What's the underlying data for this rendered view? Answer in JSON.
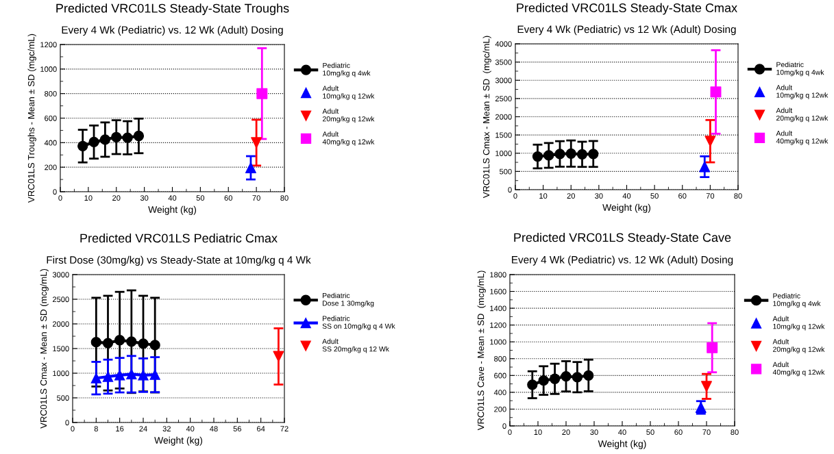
{
  "chart_data": [
    {
      "type": "line",
      "title": "Predicted VRC01LS Steady-State Troughs",
      "subtitle": "Every 4 Wk (Pediatric) vs. 12 Wk (Adult) Dosing",
      "xlabel": "Weight (kg)",
      "ylabel": "VRC01LS Troughs - Mean ± SD (mgc/mL)",
      "xlim": [
        0,
        80
      ],
      "xticks": [
        0,
        10,
        20,
        30,
        40,
        50,
        60,
        70,
        80
      ],
      "ylim": [
        0,
        1200
      ],
      "yticks": [
        0,
        200,
        400,
        600,
        800,
        1000,
        1200
      ],
      "grid": "y",
      "legend": "right",
      "marker": "circle",
      "series": [
        {
          "name": "Pediatric\n10mg/kg q 4wk",
          "color": "#000000",
          "x": [
            8,
            12,
            16,
            20,
            24,
            28
          ],
          "values": [
            372,
            405,
            425,
            445,
            440,
            455
          ],
          "errors": [
            133,
            135,
            140,
            138,
            135,
            141
          ]
        },
        {
          "name": "Adult\n10mg/kg q 12wk",
          "type": "scatter",
          "marker": "triangle",
          "color": "#0000ff",
          "x": [
            68
          ],
          "values": [
            195
          ],
          "errors": [
            95
          ]
        },
        {
          "name": "Adult\n20mg/kg q 12wk",
          "type": "scatter",
          "marker": "triangle_down",
          "color": "#ff0000",
          "x": [
            70
          ],
          "values": [
            400
          ],
          "errors": [
            187
          ]
        },
        {
          "name": "Adult\n40mg/kg q 12wk",
          "type": "scatter",
          "marker": "square",
          "color": "#ff00ff",
          "x": [
            72
          ],
          "values": [
            800
          ],
          "errors": [
            370
          ]
        }
      ]
    },
    {
      "type": "line",
      "title": "Predicted VRC01LS Steady-State Cmax",
      "subtitle": "Every 4 Wk (Pediatric) vs 12 Wk (Adult) Dosing",
      "xlabel": "Weight (kg)",
      "ylabel": "VRC01LS Cmax - Mean ± SD  (mgc/mL)",
      "xlim": [
        0,
        80
      ],
      "xticks": [
        0,
        10,
        20,
        30,
        40,
        50,
        60,
        70,
        80
      ],
      "ylim": [
        0,
        4000
      ],
      "yticks": [
        0,
        500,
        1000,
        1500,
        2000,
        2500,
        3000,
        3500,
        4000
      ],
      "grid": "y",
      "legend": "right",
      "marker": "circle",
      "series": [
        {
          "name": "Pediatric\n10mg/kg q 4wk",
          "color": "#000000",
          "x": [
            8,
            12,
            16,
            20,
            24,
            28
          ],
          "values": [
            910,
            940,
            980,
            990,
            970,
            980
          ],
          "errors": [
            325,
            340,
            350,
            360,
            345,
            355
          ]
        },
        {
          "name": "Adult\n10mg/kg q 12wk",
          "type": "scatter",
          "marker": "triangle",
          "color": "#0000ff",
          "x": [
            68
          ],
          "values": [
            630
          ],
          "errors": [
            285
          ]
        },
        {
          "name": "Adult\n20mg/kg q 12wk",
          "type": "scatter",
          "marker": "triangle_down",
          "color": "#ff0000",
          "x": [
            70
          ],
          "values": [
            1330
          ],
          "errors": [
            580
          ]
        },
        {
          "name": "Adult\n40mg/kg q 12wk",
          "type": "scatter",
          "marker": "square",
          "color": "#ff00ff",
          "x": [
            72
          ],
          "values": [
            2680
          ],
          "errors": [
            1145
          ]
        }
      ]
    },
    {
      "type": "line",
      "title": "Predicted VRC01LS Pediatric Cmax",
      "subtitle": "First Dose (30mg/kg) vs Steady-State at 10mg/kg q 4 Wk",
      "xlabel": "Weight (kg)",
      "ylabel": "VRC01LS Cmax - Mean ± SD (mcg/mL)",
      "xlim": [
        0,
        72
      ],
      "xticks": [
        0,
        8,
        16,
        24,
        32,
        40,
        48,
        56,
        64,
        72
      ],
      "ylim": [
        0,
        3000
      ],
      "yticks": [
        0,
        500,
        1000,
        1500,
        2000,
        2500,
        3000
      ],
      "grid": "y",
      "legend": "right",
      "marker": "circle",
      "series": [
        {
          "name": "Pediatric\nDose 1 30mg/kg",
          "color": "#000000",
          "x": [
            8,
            12,
            16,
            20,
            24,
            28
          ],
          "values": [
            1630,
            1610,
            1670,
            1640,
            1600,
            1570
          ],
          "errors": [
            900,
            960,
            980,
            1040,
            970,
            960
          ]
        },
        {
          "name": "Pediatric\nSS on 10mg/kg q 4 Wk",
          "marker": "triangle",
          "color": "#0000ff",
          "x": [
            8,
            12,
            16,
            20,
            24,
            28
          ],
          "values": [
            900,
            930,
            960,
            980,
            960,
            970
          ],
          "errors": [
            330,
            345,
            350,
            370,
            340,
            355
          ]
        },
        {
          "name": "Adult\nSS 20mg/kg q 12 Wk",
          "type": "scatter",
          "marker": "triangle_down",
          "color": "#ff0000",
          "x": [
            70
          ],
          "values": [
            1340
          ],
          "errors": [
            570
          ]
        }
      ]
    },
    {
      "type": "line",
      "title": "Predicted VRC01LS Steady-State Cave",
      "subtitle": "Every 4 Wk (Pediatric) vs. 12 Wk (Adult) Dosing",
      "xlabel": "Weight (kg)",
      "ylabel": "VRC01LS Cave - Mean ± SD  (mcg/mL)",
      "xlim": [
        0,
        80
      ],
      "xticks": [
        0,
        10,
        20,
        30,
        40,
        50,
        60,
        70,
        80
      ],
      "ylim": [
        0,
        1800
      ],
      "yticks": [
        0,
        200,
        400,
        600,
        800,
        1000,
        1200,
        1400,
        1600,
        1800
      ],
      "grid": "y",
      "legend": "right",
      "marker": "circle",
      "series": [
        {
          "name": "Pediatric\n10mg/kg q 4wk",
          "color": "#000000",
          "x": [
            8,
            12,
            16,
            20,
            24,
            28
          ],
          "values": [
            490,
            540,
            560,
            590,
            580,
            600
          ],
          "errors": [
            160,
            170,
            180,
            180,
            180,
            188
          ]
        },
        {
          "name": "Adult\n10mg/kg q 12wk",
          "type": "scatter",
          "marker": "triangle",
          "color": "#0000ff",
          "x": [
            68
          ],
          "values": [
            220
          ],
          "errors": [
            75
          ]
        },
        {
          "name": "Adult\n20mg/kg q 12wk",
          "type": "scatter",
          "marker": "triangle_down",
          "color": "#ff0000",
          "x": [
            70
          ],
          "values": [
            470
          ],
          "errors": [
            148
          ]
        },
        {
          "name": "Adult\n40mg/kg q 12wk",
          "type": "scatter",
          "marker": "square",
          "color": "#ff00ff",
          "x": [
            72
          ],
          "values": [
            930
          ],
          "errors": [
            292
          ]
        }
      ]
    }
  ]
}
